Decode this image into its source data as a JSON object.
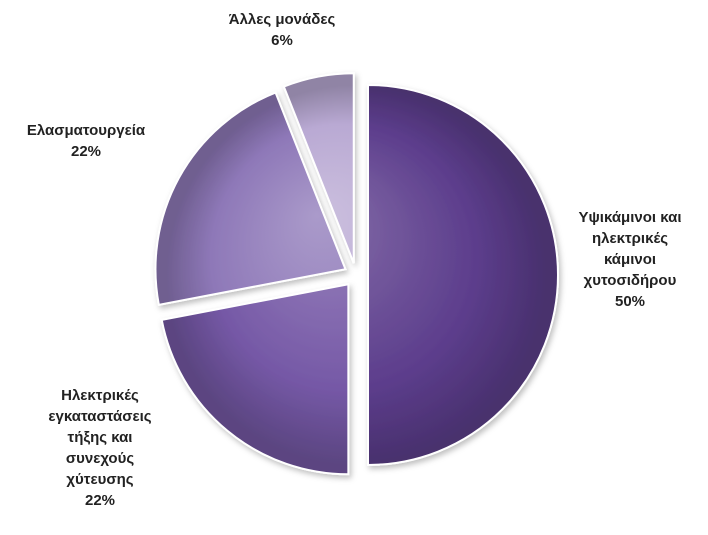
{
  "chart_data": {
    "type": "pie",
    "exploded": true,
    "start_angle_deg": 0,
    "direction": "clockwise",
    "slices": [
      {
        "label_lines": [
          "Υψικάμινοι και",
          "ηλεκτρικές",
          "κάμινοι",
          "χυτοσιδήρου"
        ],
        "value": 50,
        "percent_label": "50%",
        "color": "#5c3d8c"
      },
      {
        "label_lines": [
          "Ηλεκτρικές",
          "εγκαταστάσεις",
          "τήξης και",
          "συνεχούς",
          "χύτευσης"
        ],
        "value": 22,
        "percent_label": "22%",
        "color": "#7558a6"
      },
      {
        "label_lines": [
          "Ελασματουργεία"
        ],
        "value": 22,
        "percent_label": "22%",
        "color": "#8e78b8"
      },
      {
        "label_lines": [
          "Άλλες μονάδες"
        ],
        "value": 6,
        "percent_label": "6%",
        "color": "#b9a9d3"
      }
    ]
  }
}
